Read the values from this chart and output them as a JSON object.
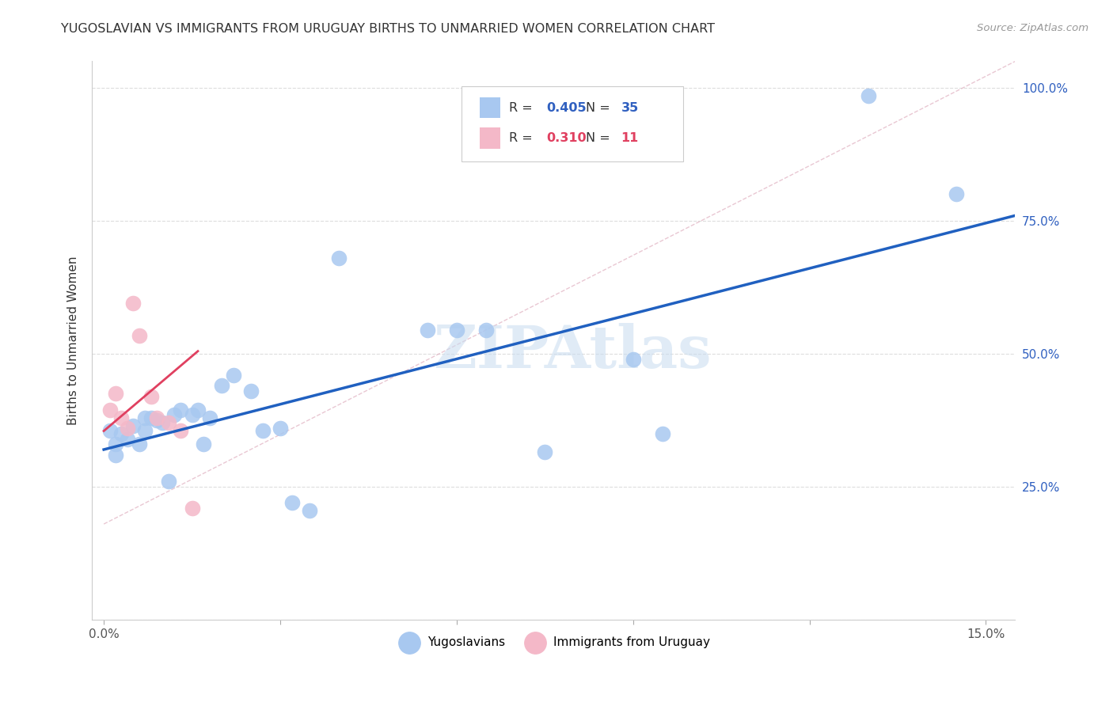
{
  "title": "YUGOSLAVIAN VS IMMIGRANTS FROM URUGUAY BIRTHS TO UNMARRIED WOMEN CORRELATION CHART",
  "source": "Source: ZipAtlas.com",
  "ylabel": "Births to Unmarried Women",
  "yticks": [
    0.0,
    0.25,
    0.5,
    0.75,
    1.0
  ],
  "ytick_labels": [
    "",
    "25.0%",
    "50.0%",
    "75.0%",
    "100.0%"
  ],
  "xticks": [
    0.0,
    0.03,
    0.06,
    0.09,
    0.12,
    0.15
  ],
  "xtick_labels": [
    "0.0%",
    "",
    "",
    "",
    "",
    "15.0%"
  ],
  "xlim": [
    -0.002,
    0.155
  ],
  "ylim": [
    0.05,
    1.05
  ],
  "watermark": "ZIPAtlas",
  "blue_color": "#a8c8f0",
  "pink_color": "#f4b8c8",
  "blue_line_color": "#2060c0",
  "pink_line_color": "#e04060",
  "dashed_color": "#e0b0c0",
  "blue_line_x": [
    0.0,
    0.155
  ],
  "blue_line_y": [
    0.32,
    0.76
  ],
  "pink_line_x": [
    0.0,
    0.016
  ],
  "pink_line_y": [
    0.355,
    0.505
  ],
  "dash_line_x": [
    0.0,
    0.155
  ],
  "dash_line_y": [
    0.18,
    1.05
  ],
  "yug_x": [
    0.001,
    0.002,
    0.002,
    0.003,
    0.004,
    0.005,
    0.006,
    0.007,
    0.007,
    0.008,
    0.009,
    0.01,
    0.011,
    0.012,
    0.013,
    0.015,
    0.016,
    0.017,
    0.018,
    0.02,
    0.022,
    0.025,
    0.027,
    0.03,
    0.032,
    0.035,
    0.04,
    0.055,
    0.06,
    0.065,
    0.075,
    0.09,
    0.095,
    0.13,
    0.145
  ],
  "yug_y": [
    0.355,
    0.33,
    0.31,
    0.35,
    0.34,
    0.365,
    0.33,
    0.38,
    0.355,
    0.38,
    0.375,
    0.37,
    0.26,
    0.385,
    0.395,
    0.385,
    0.395,
    0.33,
    0.38,
    0.44,
    0.46,
    0.43,
    0.355,
    0.36,
    0.22,
    0.205,
    0.68,
    0.545,
    0.545,
    0.545,
    0.315,
    0.49,
    0.35,
    0.985,
    0.8
  ],
  "uru_x": [
    0.001,
    0.002,
    0.003,
    0.004,
    0.005,
    0.006,
    0.008,
    0.009,
    0.011,
    0.013,
    0.015
  ],
  "uru_y": [
    0.395,
    0.425,
    0.38,
    0.36,
    0.595,
    0.535,
    0.42,
    0.38,
    0.37,
    0.355,
    0.21
  ]
}
